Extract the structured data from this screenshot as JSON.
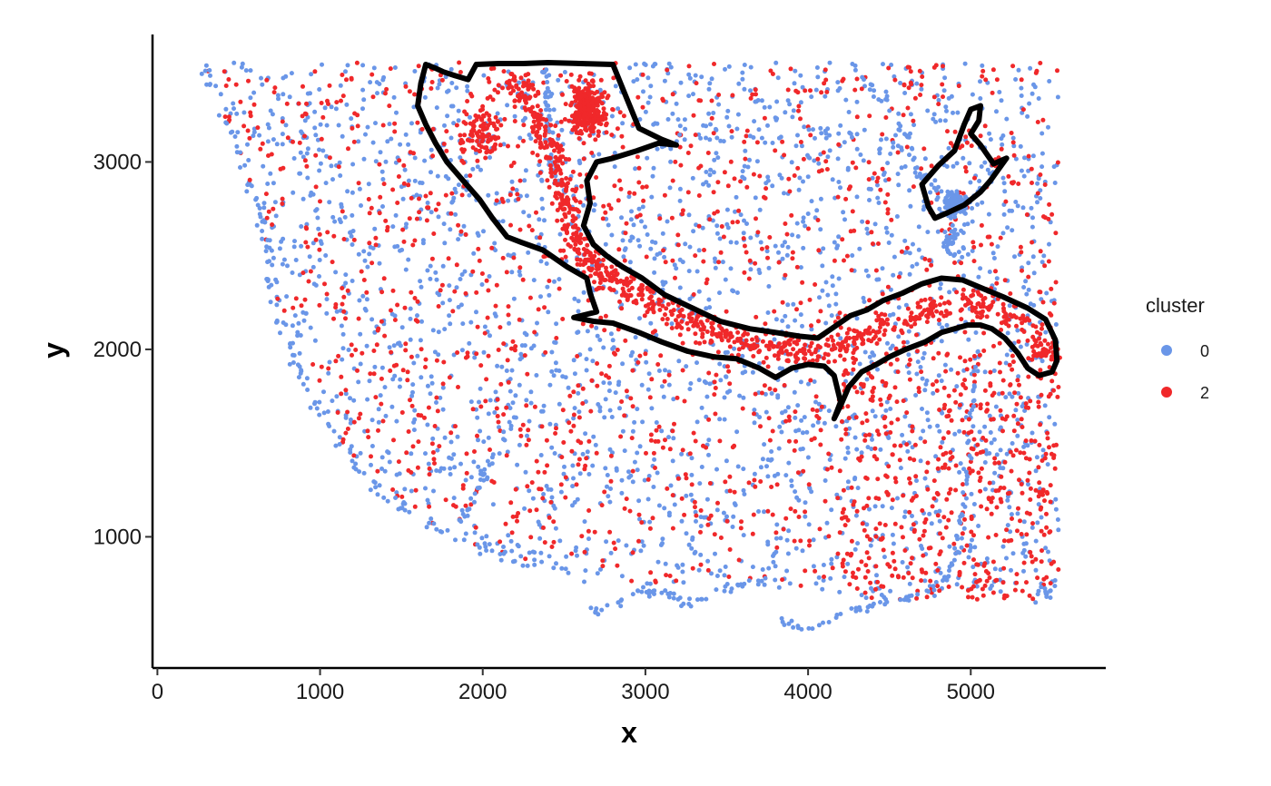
{
  "chart_data": {
    "type": "scatter",
    "xlabel": "x",
    "ylabel": "y",
    "xlim": [
      -30,
      5830
    ],
    "ylim": [
      300,
      3680
    ],
    "x_ticks": [
      0,
      1000,
      2000,
      3000,
      4000,
      5000
    ],
    "y_ticks": [
      1000,
      2000,
      3000
    ],
    "grid": false,
    "legend": {
      "title": "cluster",
      "placement": "right",
      "entries": [
        {
          "label": "0",
          "color": "#6a96e8"
        },
        {
          "label": "2",
          "color": "#f0282a"
        }
      ]
    },
    "series": [
      {
        "name": "0",
        "color": "#6a96e8",
        "description_points": "spot coordinates"
      },
      {
        "name": "2",
        "color": "#f0282a",
        "description_points": "spot coordinates"
      }
    ],
    "region_outlines": [
      {
        "stroke": "#000000",
        "points": [
          [
            1650,
            3520
          ],
          [
            1710,
            3500
          ],
          [
            1760,
            3480
          ],
          [
            1830,
            3460
          ],
          [
            1910,
            3440
          ],
          [
            1960,
            3520
          ],
          [
            2100,
            3525
          ],
          [
            2250,
            3525
          ],
          [
            2400,
            3530
          ],
          [
            2600,
            3525
          ],
          [
            2800,
            3520
          ],
          [
            2880,
            3350
          ],
          [
            2960,
            3180
          ],
          [
            3100,
            3120
          ],
          [
            3190,
            3090
          ],
          [
            3080,
            3100
          ],
          [
            2950,
            3060
          ],
          [
            2800,
            3020
          ],
          [
            2700,
            3000
          ],
          [
            2640,
            2900
          ],
          [
            2660,
            2780
          ],
          [
            2620,
            2660
          ],
          [
            2680,
            2560
          ],
          [
            2760,
            2500
          ],
          [
            2860,
            2440
          ],
          [
            2980,
            2380
          ],
          [
            3120,
            2290
          ],
          [
            3290,
            2220
          ],
          [
            3460,
            2150
          ],
          [
            3640,
            2110
          ],
          [
            3800,
            2090
          ],
          [
            3950,
            2070
          ],
          [
            4060,
            2060
          ],
          [
            4160,
            2120
          ],
          [
            4260,
            2180
          ],
          [
            4360,
            2210
          ],
          [
            4460,
            2260
          ],
          [
            4580,
            2300
          ],
          [
            4700,
            2350
          ],
          [
            4820,
            2380
          ],
          [
            4950,
            2370
          ],
          [
            5060,
            2330
          ],
          [
            5200,
            2280
          ],
          [
            5350,
            2220
          ],
          [
            5460,
            2160
          ],
          [
            5520,
            2050
          ],
          [
            5530,
            1940
          ],
          [
            5500,
            1880
          ],
          [
            5420,
            1860
          ],
          [
            5350,
            1900
          ],
          [
            5290,
            1980
          ],
          [
            5210,
            2060
          ],
          [
            5130,
            2110
          ],
          [
            5060,
            2130
          ],
          [
            4980,
            2130
          ],
          [
            4900,
            2110
          ],
          [
            4820,
            2090
          ],
          [
            4720,
            2040
          ],
          [
            4600,
            2000
          ],
          [
            4500,
            1960
          ],
          [
            4420,
            1920
          ],
          [
            4330,
            1880
          ],
          [
            4250,
            1800
          ],
          [
            4200,
            1700
          ],
          [
            4160,
            1630
          ],
          [
            4200,
            1720
          ],
          [
            4160,
            1860
          ],
          [
            4100,
            1910
          ],
          [
            4000,
            1920
          ],
          [
            3900,
            1900
          ],
          [
            3800,
            1850
          ],
          [
            3700,
            1900
          ],
          [
            3560,
            1950
          ],
          [
            3420,
            1960
          ],
          [
            3260,
            1990
          ],
          [
            3100,
            2040
          ],
          [
            2960,
            2090
          ],
          [
            2800,
            2140
          ],
          [
            2680,
            2150
          ],
          [
            2560,
            2170
          ],
          [
            2700,
            2200
          ],
          [
            2660,
            2300
          ],
          [
            2640,
            2380
          ],
          [
            2520,
            2440
          ],
          [
            2370,
            2530
          ],
          [
            2240,
            2570
          ],
          [
            2150,
            2600
          ],
          [
            2060,
            2700
          ],
          [
            1980,
            2800
          ],
          [
            1880,
            2900
          ],
          [
            1780,
            3000
          ],
          [
            1710,
            3100
          ],
          [
            1650,
            3200
          ],
          [
            1600,
            3300
          ],
          [
            1620,
            3420
          ]
        ]
      },
      {
        "stroke": "#000000",
        "points": [
          [
            4700,
            2880
          ],
          [
            4800,
            2980
          ],
          [
            4900,
            3060
          ],
          [
            4960,
            3200
          ],
          [
            5000,
            3280
          ],
          [
            5060,
            3300
          ],
          [
            5050,
            3220
          ],
          [
            5000,
            3150
          ],
          [
            5060,
            3090
          ],
          [
            5140,
            2990
          ],
          [
            5220,
            3020
          ],
          [
            5120,
            2900
          ],
          [
            5060,
            2840
          ],
          [
            4960,
            2770
          ],
          [
            4860,
            2730
          ],
          [
            4780,
            2700
          ],
          [
            4740,
            2760
          ]
        ]
      }
    ],
    "point_clusters": [
      {
        "series": "0",
        "kind": "edge",
        "path": [
          [
            290,
            3500
          ],
          [
            320,
            3400
          ],
          [
            380,
            3300
          ],
          [
            470,
            3100
          ],
          [
            560,
            2900
          ],
          [
            620,
            2750
          ],
          [
            680,
            2550
          ],
          [
            700,
            2400
          ],
          [
            730,
            2250
          ],
          [
            780,
            2100
          ],
          [
            840,
            1950
          ],
          [
            920,
            1800
          ],
          [
            1020,
            1650
          ],
          [
            1120,
            1500
          ],
          [
            1230,
            1370
          ],
          [
            1360,
            1250
          ],
          [
            1500,
            1160
          ],
          [
            1660,
            1080
          ],
          [
            1820,
            1000
          ],
          [
            1990,
            940
          ],
          [
            2150,
            890
          ],
          [
            2320,
            860
          ],
          [
            2460,
            840
          ],
          [
            2540,
            830
          ]
        ],
        "n": 140,
        "spread": 25
      },
      {
        "series": "0",
        "kind": "edge",
        "path": [
          [
            2620,
            610
          ],
          [
            2750,
            600
          ],
          [
            2880,
            660
          ],
          [
            3000,
            720
          ],
          [
            3120,
            700
          ],
          [
            3240,
            650
          ],
          [
            3380,
            680
          ],
          [
            3520,
            730
          ],
          [
            3680,
            760
          ],
          [
            3820,
            740
          ]
        ],
        "n": 60,
        "spread": 18
      },
      {
        "series": "0",
        "kind": "edge",
        "path": [
          [
            3820,
            560
          ],
          [
            3960,
            510
          ],
          [
            4100,
            540
          ],
          [
            4230,
            590
          ],
          [
            4360,
            620
          ],
          [
            4500,
            650
          ],
          [
            4640,
            680
          ],
          [
            4760,
            720
          ],
          [
            4860,
            800
          ],
          [
            4920,
            950
          ],
          [
            4960,
            1150
          ],
          [
            4980,
            1350
          ],
          [
            5000,
            1550
          ],
          [
            5020,
            1800
          ],
          [
            5040,
            1990
          ]
        ],
        "n": 90,
        "spread": 15
      },
      {
        "series": "0",
        "kind": "edge",
        "path": [
          [
            1860,
            1090
          ],
          [
            1940,
            1200
          ],
          [
            2000,
            1320
          ],
          [
            2060,
            1440
          ],
          [
            2120,
            1540
          ],
          [
            2200,
            1640
          ]
        ],
        "n": 30,
        "spread": 12
      },
      {
        "series": "0",
        "kind": "edge",
        "path": [
          [
            3150,
            3120
          ],
          [
            3400,
            3120
          ],
          [
            3700,
            3140
          ],
          [
            4000,
            3160
          ],
          [
            4300,
            3150
          ],
          [
            4500,
            3100
          ],
          [
            4650,
            3000
          ],
          [
            4750,
            2880
          ],
          [
            4850,
            2760
          ],
          [
            4930,
            2600
          ],
          [
            4980,
            2520
          ]
        ],
        "n": 60,
        "spread": 20
      },
      {
        "series": "0",
        "kind": "edge",
        "path": [
          [
            4250,
            3530
          ],
          [
            4400,
            3380
          ],
          [
            4500,
            3270
          ],
          [
            4580,
            3170
          ],
          [
            4660,
            3060
          ]
        ],
        "n": 22,
        "spread": 15
      },
      {
        "series": "0",
        "kind": "edge",
        "path": [
          [
            2380,
            3500
          ],
          [
            2400,
            3300
          ],
          [
            2420,
            3100
          ],
          [
            2440,
            2900
          ]
        ],
        "n": 40,
        "spread": 15
      },
      {
        "series": "0",
        "kind": "blob",
        "center": [
          4900,
          2780
        ],
        "radius": [
          130,
          90
        ],
        "n": 90
      },
      {
        "series": "0",
        "kind": "blob",
        "center": [
          4870,
          2560
        ],
        "radius": [
          60,
          80
        ],
        "n": 25
      },
      {
        "series": "0",
        "kind": "blob",
        "center": [
          5460,
          700
        ],
        "radius": [
          80,
          40
        ],
        "n": 10
      },
      {
        "series": "2",
        "kind": "band",
        "path": [
          [
            2200,
            3450
          ],
          [
            2300,
            3300
          ],
          [
            2380,
            3150
          ],
          [
            2460,
            2980
          ],
          [
            2520,
            2800
          ],
          [
            2560,
            2640
          ],
          [
            2620,
            2500
          ],
          [
            2720,
            2420
          ],
          [
            2880,
            2330
          ],
          [
            3060,
            2240
          ],
          [
            3250,
            2160
          ],
          [
            3450,
            2090
          ],
          [
            3650,
            2040
          ],
          [
            3850,
            2000
          ],
          [
            4050,
            1990
          ],
          [
            4250,
            2040
          ],
          [
            4450,
            2110
          ],
          [
            4650,
            2180
          ],
          [
            4850,
            2240
          ],
          [
            5050,
            2240
          ],
          [
            5250,
            2180
          ],
          [
            5420,
            2060
          ],
          [
            5480,
            1960
          ]
        ],
        "n": 850,
        "spread": 55
      },
      {
        "series": "2",
        "kind": "blob",
        "center": [
          2650,
          3280
        ],
        "radius": [
          160,
          200
        ],
        "n": 260
      },
      {
        "series": "2",
        "kind": "blob",
        "center": [
          2000,
          3150
        ],
        "radius": [
          180,
          200
        ],
        "n": 90
      }
    ],
    "scatter_regions": {
      "x_range": [
        290,
        5540
      ],
      "y_range": [
        600,
        3530
      ],
      "outline_lower_edge": [
        [
          290,
          3530
        ],
        [
          470,
          3100
        ],
        [
          620,
          2750
        ],
        [
          700,
          2400
        ],
        [
          780,
          2100
        ],
        [
          920,
          1800
        ],
        [
          1120,
          1500
        ],
        [
          1360,
          1250
        ],
        [
          1660,
          1080
        ],
        [
          1990,
          940
        ],
        [
          2320,
          860
        ],
        [
          2620,
          760
        ],
        [
          3000,
          740
        ],
        [
          3500,
          760
        ],
        [
          3820,
          760
        ],
        [
          4100,
          700
        ],
        [
          4500,
          660
        ],
        [
          4860,
          680
        ],
        [
          5200,
          650
        ],
        [
          5540,
          640
        ]
      ],
      "n_background_0": 2300,
      "n_background_2": 1450,
      "red_bias_region": {
        "x_range": [
          4200,
          5540
        ],
        "y_range": [
          600,
          2000
        ]
      }
    }
  }
}
